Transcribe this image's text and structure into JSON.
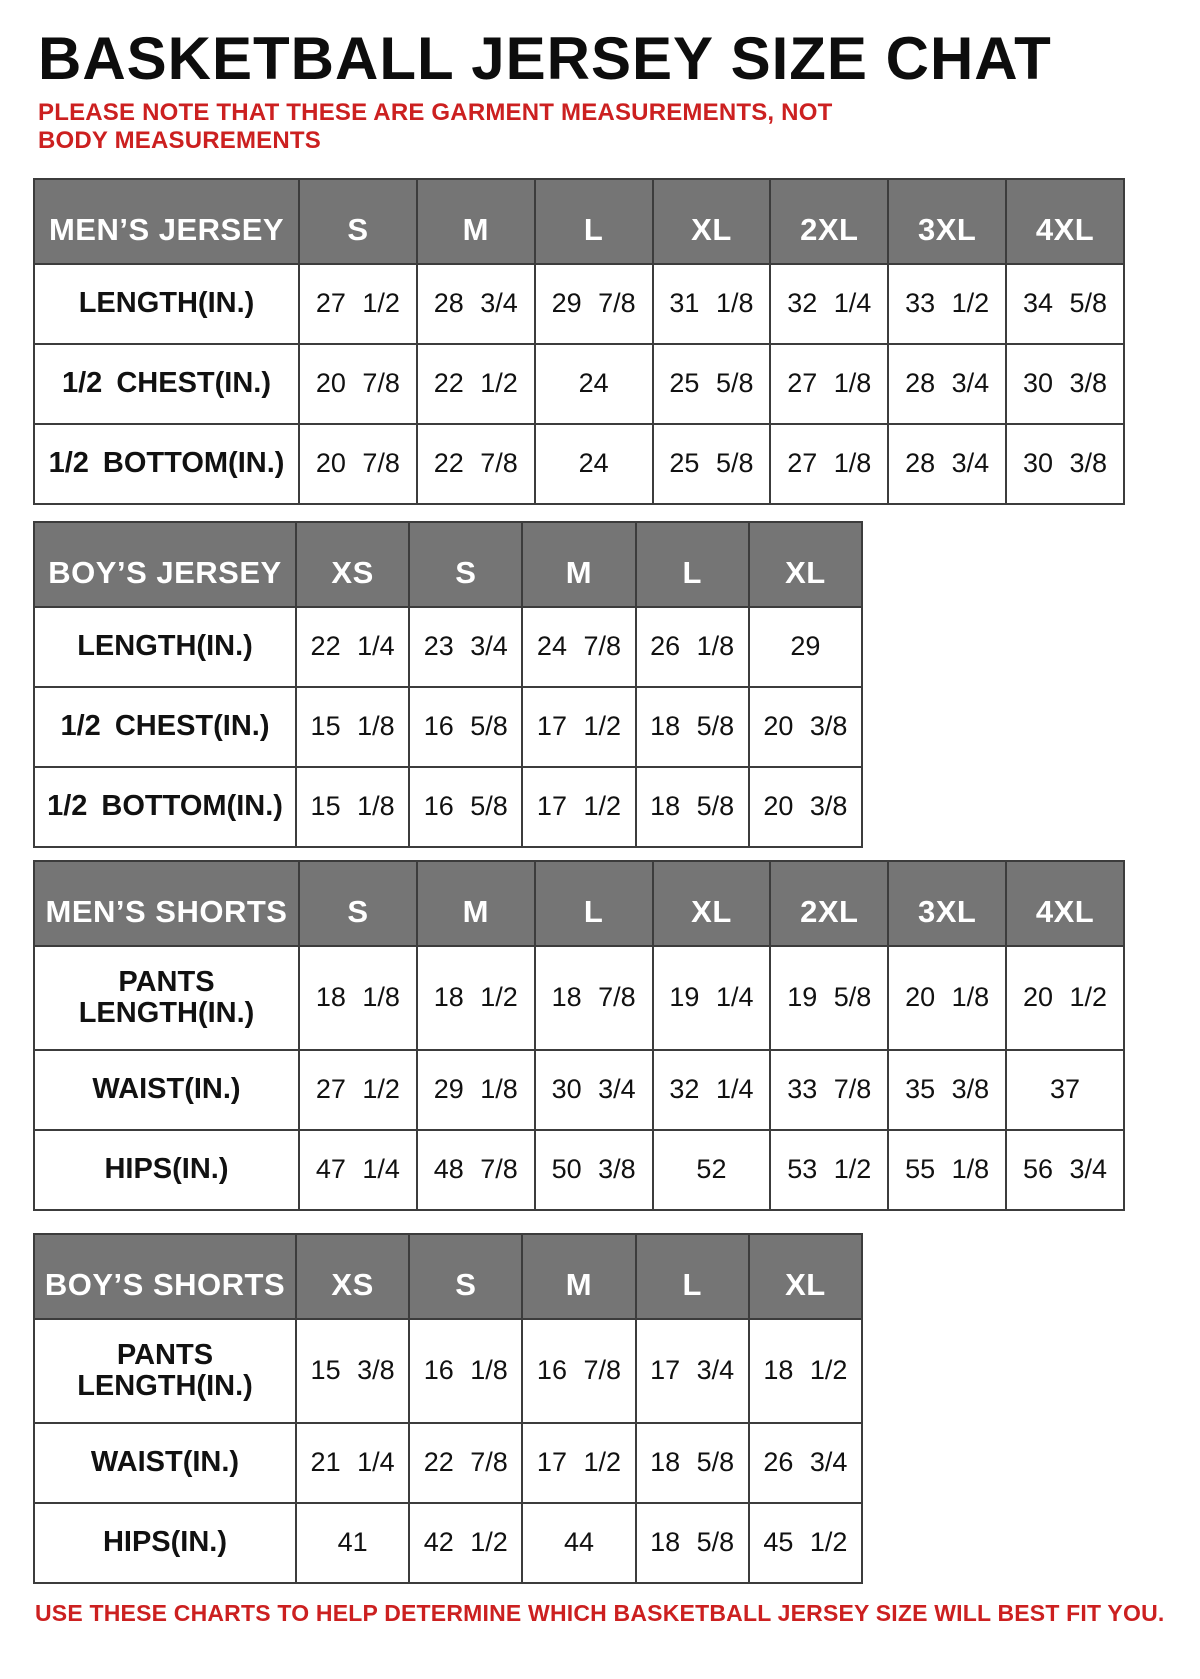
{
  "page": {
    "title": "BASKETBALL JERSEY SIZE CHAT",
    "note": "PLEASE NOTE THAT THESE ARE GARMENT MEASUREMENTS, NOT BODY MEASUREMENTS",
    "footer": "USE THESE CHARTS TO HELP DETERMINE WHICH BASKETBALL JERSEY SIZE WILL BEST FIT YOU."
  },
  "colors": {
    "header_bg": "#757575",
    "header_text": "#ffffff",
    "note_red": "#cc2020",
    "border": "#3c3c3c"
  },
  "tables": [
    {
      "id": "mens-jersey",
      "title": "MEN’S JERSEY",
      "width": "wide",
      "sizes": [
        "S",
        "M",
        "L",
        "XL",
        "2XL",
        "3XL",
        "4XL"
      ],
      "rows": [
        {
          "label": "LENGTH(IN.)",
          "values": [
            "27 1/2",
            "28 3/4",
            "29 7/8",
            "31 1/8",
            "32 1/4",
            "33 1/2",
            "34 5/8"
          ]
        },
        {
          "label": "1/2 CHEST(IN.)",
          "values": [
            "20 7/8",
            "22 1/2",
            "24",
            "25 5/8",
            "27 1/8",
            "28 3/4",
            "30 3/8"
          ]
        },
        {
          "label": "1/2 BOTTOM(IN.)",
          "values": [
            "20 7/8",
            "22 7/8",
            "24",
            "25 5/8",
            "27 1/8",
            "28 3/4",
            "30 3/8"
          ]
        }
      ]
    },
    {
      "id": "boys-jersey",
      "title": "BOY’S JERSEY",
      "width": "narrow",
      "sizes": [
        "XS",
        "S",
        "M",
        "L",
        "XL"
      ],
      "rows": [
        {
          "label": "LENGTH(IN.)",
          "values": [
            "22 1/4",
            "23 3/4",
            "24 7/8",
            "26 1/8",
            "29"
          ]
        },
        {
          "label": "1/2 CHEST(IN.)",
          "values": [
            "15 1/8",
            "16 5/8",
            "17 1/2",
            "18 5/8",
            "20 3/8"
          ]
        },
        {
          "label": "1/2 BOTTOM(IN.)",
          "values": [
            "15 1/8",
            "16 5/8",
            "17 1/2",
            "18 5/8",
            "20 3/8"
          ]
        }
      ]
    },
    {
      "id": "mens-shorts",
      "title": "MEN’S SHORTS",
      "width": "wide",
      "sizes": [
        "S",
        "M",
        "L",
        "XL",
        "2XL",
        "3XL",
        "4XL"
      ],
      "rows": [
        {
          "label": "PANTS\nLENGTH(IN.)",
          "values": [
            "18 1/8",
            "18 1/2",
            "18 7/8",
            "19 1/4",
            "19 5/8",
            "20 1/8",
            "20 1/2"
          ]
        },
        {
          "label": "WAIST(IN.)",
          "values": [
            "27 1/2",
            "29 1/8",
            "30 3/4",
            "32 1/4",
            "33 7/8",
            "35 3/8",
            "37"
          ]
        },
        {
          "label": "HIPS(IN.)",
          "values": [
            "47 1/4",
            "48 7/8",
            "50 3/8",
            "52",
            "53 1/2",
            "55 1/8",
            "56 3/4"
          ]
        }
      ]
    },
    {
      "id": "boys-shorts",
      "title": "BOY’S SHORTS",
      "width": "narrow",
      "sizes": [
        "XS",
        "S",
        "M",
        "L",
        "XL"
      ],
      "rows": [
        {
          "label": "PANTS\nLENGTH(IN.)",
          "values": [
            "15 3/8",
            "16 1/8",
            "16 7/8",
            "17 3/4",
            "18 1/2"
          ]
        },
        {
          "label": "WAIST(IN.)",
          "values": [
            "21 1/4",
            "22 7/8",
            "17 1/2",
            "18 5/8",
            "26 3/4"
          ]
        },
        {
          "label": "HIPS(IN.)",
          "values": [
            "41",
            "42 1/2",
            "44",
            "18 5/8",
            "45 1/2"
          ]
        }
      ]
    }
  ]
}
